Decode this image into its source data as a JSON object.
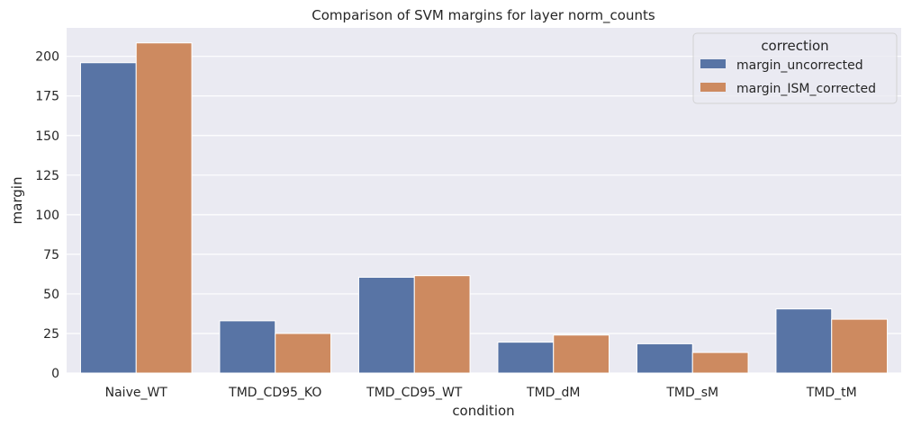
{
  "chart_data": {
    "type": "bar",
    "title": "Comparison of SVM margins for layer norm_counts",
    "xlabel": "condition",
    "ylabel": "margin",
    "categories": [
      "Naive_WT",
      "TMD_CD95_KO",
      "TMD_CD95_WT",
      "TMD_dM",
      "TMD_sM",
      "TMD_tM"
    ],
    "series": [
      {
        "name": "margin_uncorrected",
        "color": "#5874a5",
        "values": [
          196,
          33,
          60.5,
          19.5,
          18.5,
          40.5
        ]
      },
      {
        "name": "margin_ISM_corrected",
        "color": "#cd8a60",
        "values": [
          208.5,
          25,
          61.5,
          24,
          13,
          34
        ]
      }
    ],
    "ylim": [
      0,
      218
    ],
    "yticks": [
      0,
      25,
      50,
      75,
      100,
      125,
      150,
      175,
      200
    ],
    "grid": true,
    "legend": {
      "title": "correction",
      "position": "top-right"
    },
    "background_color": "#eaeaf2",
    "grid_color": "#ffffff"
  }
}
